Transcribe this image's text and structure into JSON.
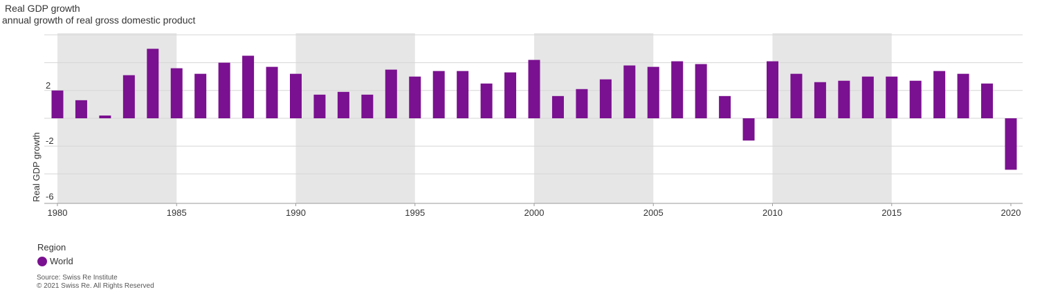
{
  "chart_data": {
    "type": "bar",
    "title": "Real GDP growth",
    "subtitle": "annual growth of real gross domestic product",
    "xlabel": "",
    "ylabel": "Real GDP growth",
    "x": [
      1980,
      1981,
      1982,
      1983,
      1984,
      1985,
      1986,
      1987,
      1988,
      1989,
      1990,
      1991,
      1992,
      1993,
      1994,
      1995,
      1996,
      1997,
      1998,
      1999,
      2000,
      2001,
      2002,
      2003,
      2004,
      2005,
      2006,
      2007,
      2008,
      2009,
      2010,
      2011,
      2012,
      2013,
      2014,
      2015,
      2016,
      2017,
      2018,
      2019,
      2020
    ],
    "series": [
      {
        "name": "World",
        "values": [
          2.0,
          1.3,
          0.2,
          3.1,
          5.0,
          3.6,
          3.2,
          4.0,
          4.5,
          3.7,
          3.2,
          1.7,
          1.9,
          1.7,
          3.5,
          3.0,
          3.4,
          3.4,
          2.5,
          3.3,
          4.2,
          1.6,
          2.1,
          2.8,
          3.8,
          3.7,
          4.1,
          3.9,
          1.6,
          -1.6,
          4.1,
          3.2,
          2.6,
          2.7,
          3.0,
          3.0,
          2.7,
          3.4,
          3.2,
          2.5,
          -3.7
        ]
      }
    ],
    "xticks": [
      "1980",
      "1985",
      "1990",
      "1995",
      "2000",
      "2005",
      "2010",
      "2015",
      "2020"
    ],
    "yticks": [
      "2",
      "-2",
      "-6"
    ],
    "ylim": [
      -6,
      6
    ],
    "color": "#7a1190",
    "shaded_bands": [
      [
        1980,
        1985
      ],
      [
        1990,
        1995
      ],
      [
        2000,
        2005
      ],
      [
        2010,
        2015
      ]
    ],
    "grid": true,
    "legend": {
      "title": "Region",
      "items": [
        "World"
      ],
      "position": "bottom-left"
    }
  },
  "source": {
    "line1": "Source: Swiss Re Institute",
    "line2": "© 2021 Swiss Re. All Rights Reserved"
  }
}
